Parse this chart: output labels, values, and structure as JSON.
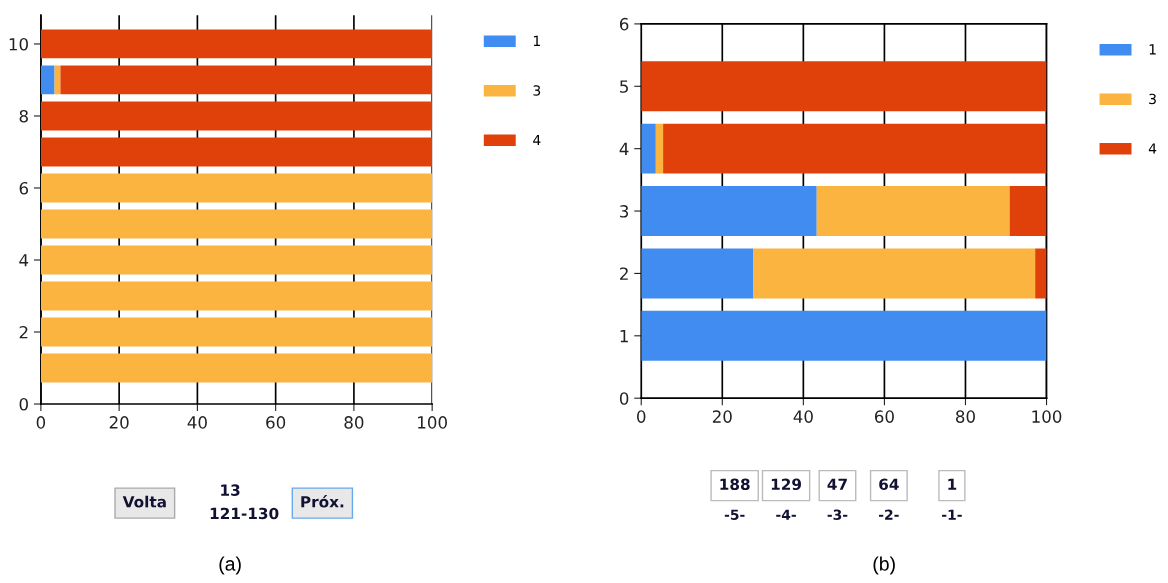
{
  "chart_data": [
    {
      "type": "bar",
      "orientation": "horizontal",
      "stacked": true,
      "x": [
        1,
        2,
        3,
        4,
        5,
        6,
        7,
        8,
        9,
        10
      ],
      "series": [
        {
          "name": "1",
          "color": "#418cf0",
          "values": [
            0,
            0,
            0,
            0,
            0,
            0,
            0,
            0,
            3.5,
            0
          ]
        },
        {
          "name": "3",
          "color": "#fcb441",
          "values": [
            100,
            100,
            100,
            100,
            100,
            100,
            0,
            0,
            1.5,
            0
          ]
        },
        {
          "name": "4",
          "color": "#e0400a",
          "values": [
            0,
            0,
            0,
            0,
            0,
            0,
            100,
            100,
            95,
            100
          ]
        }
      ],
      "xlim": [
        0,
        100
      ],
      "xticks": [
        0,
        20,
        40,
        60,
        80,
        100
      ],
      "ylim": [
        0,
        10.8
      ],
      "yticks": [
        0,
        2,
        4,
        6,
        8,
        10
      ],
      "grid": "x",
      "legend": "right",
      "annotations": [
        "Volta",
        "13",
        "121-130",
        "Próx.",
        "(a)"
      ]
    },
    {
      "type": "bar",
      "orientation": "horizontal",
      "stacked": true,
      "x": [
        1,
        2,
        3,
        4,
        5
      ],
      "series": [
        {
          "name": "1",
          "color": "#418cf0",
          "values": [
            100,
            27.7,
            43.3,
            3.6,
            0
          ]
        },
        {
          "name": "3",
          "color": "#fcb441",
          "values": [
            0,
            69.5,
            47.6,
            1.8,
            0
          ]
        },
        {
          "name": "4",
          "color": "#e0400a",
          "values": [
            0,
            2.8,
            9.1,
            94.6,
            100
          ]
        }
      ],
      "xlim": [
        0,
        100
      ],
      "xticks": [
        0,
        20,
        40,
        60,
        80,
        100
      ],
      "ylim": [
        0,
        6
      ],
      "yticks": [
        0,
        1,
        2,
        3,
        4,
        5,
        6
      ],
      "grid": "x",
      "legend": "right",
      "annotations": [
        "188",
        "129",
        "47",
        "64",
        "1",
        "-5-",
        "-4-",
        "-3-",
        "-2-",
        "-1-",
        "(b)"
      ]
    }
  ]
}
